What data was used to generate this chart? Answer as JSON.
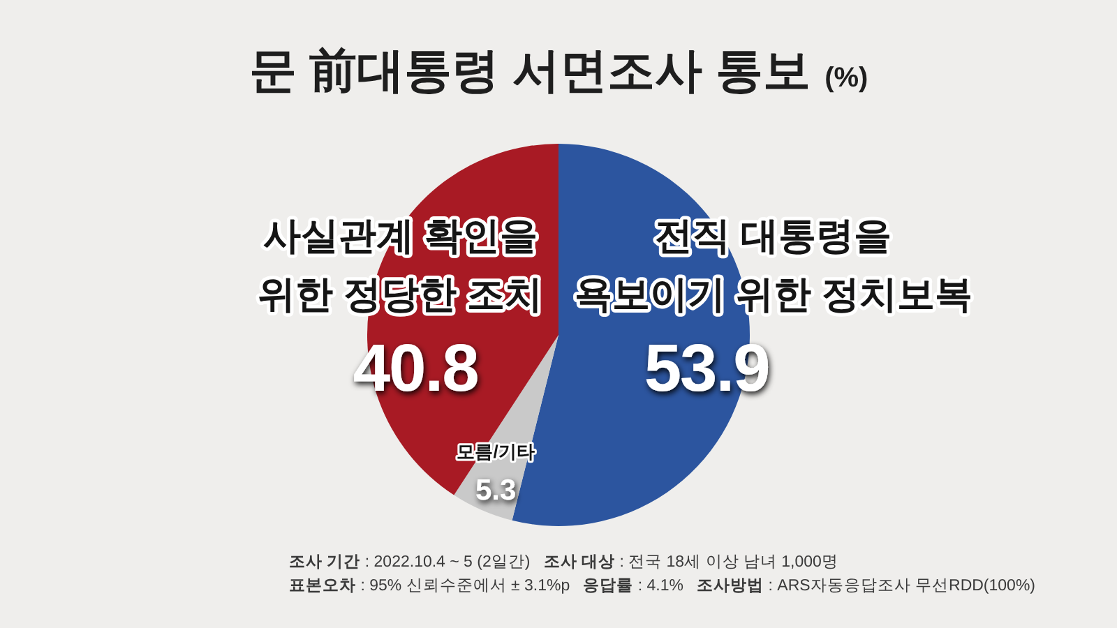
{
  "chart_data": {
    "type": "pie",
    "title": "문 前대통령 서면조사 통보",
    "subtitle": "(%)",
    "categories": [
      "전직 대통령을 욕보이기 위한 정치보복",
      "모름/기타",
      "사실관계 확인을 위한 정당한 조치"
    ],
    "values": [
      53.9,
      5.3,
      40.8
    ],
    "colors": [
      "#2c559f",
      "#c9c9c9",
      "#a81a24"
    ],
    "data_labels": true,
    "annotations": [
      "**조사 기간** : 2022.10.4 ~ 5 (2일간)   **조사 대상** : 전국 18세 이상 남녀 1,000명",
      "**표본오차** : 95% 신뢰수준에서 ± 3.1%p   **응답률** : 4.1%   **조사방법** : ARS자동응답조사 무선RDD(100%)"
    ]
  }
}
